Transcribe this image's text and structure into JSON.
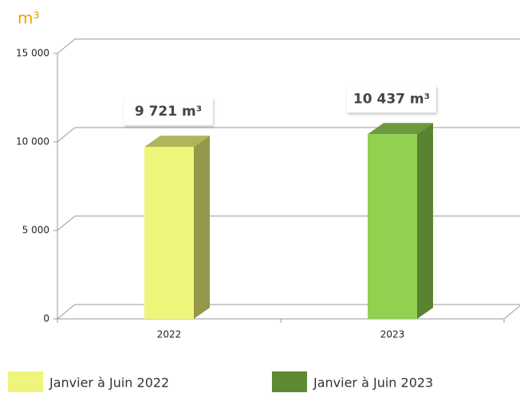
{
  "chart_data": {
    "type": "bar3d",
    "y_label": "m³",
    "categories": [
      "2022",
      "2023"
    ],
    "series": [
      {
        "name": "Janvier à Juin 2022",
        "color": "#eef57a",
        "values": [
          9721,
          null
        ],
        "value_labels": [
          "9 721 m³",
          null
        ]
      },
      {
        "name": "Janvier à Juin 2023",
        "color": "#92d050",
        "legend_color": "#5d8a33",
        "values": [
          null,
          10437
        ],
        "value_labels": [
          null,
          "10 437 m³"
        ]
      }
    ],
    "ylim": [
      0,
      15000
    ],
    "yticks": [
      {
        "value": 0,
        "label": "0"
      },
      {
        "value": 5000,
        "label": "5 000"
      },
      {
        "value": 10000,
        "label": "10 000"
      },
      {
        "value": 15000,
        "label": "15 000"
      }
    ],
    "grid": true
  }
}
